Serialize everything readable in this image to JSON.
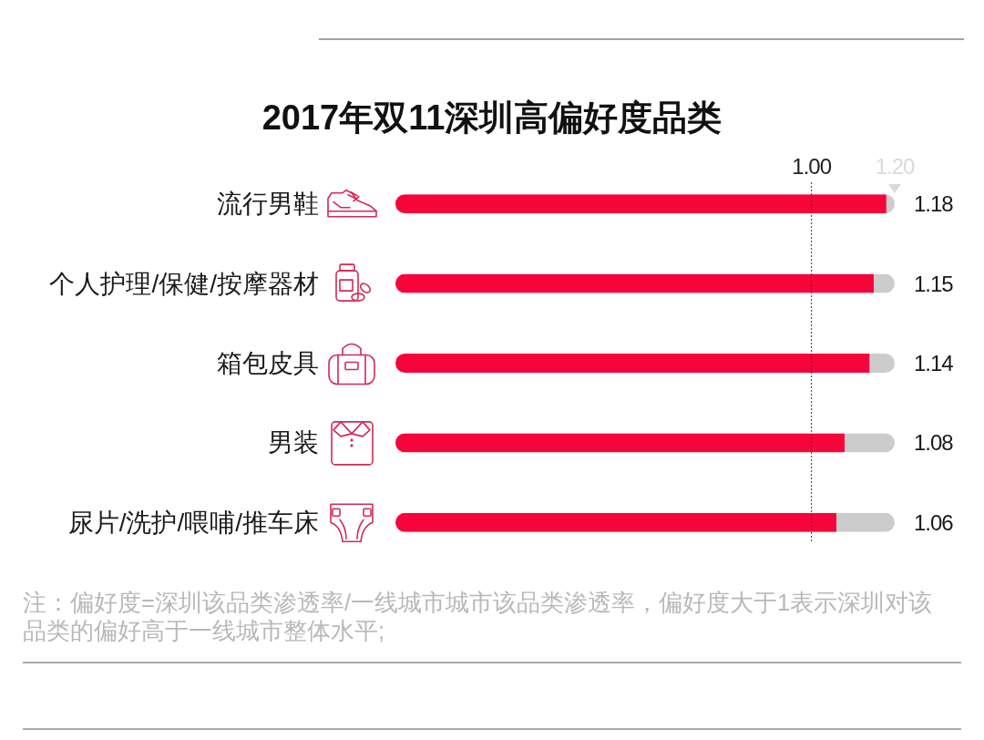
{
  "chart_data": {
    "type": "bar",
    "orientation": "horizontal",
    "stacked": true,
    "title": "2017年双11深圳高偏好度品类",
    "categories": [
      "流行男鞋",
      "个人护理/保健/按摩器材",
      "箱包皮具",
      "男装",
      "尿片/洗护/喂哺/推车床"
    ],
    "series": [
      {
        "color": "#f5053a",
        "values": [
          1.18,
          1.15,
          1.14,
          1.08,
          1.06
        ],
        "value_labels": [
          "1.18",
          "1.15",
          "1.14",
          "1.08",
          "1.06"
        ]
      },
      {
        "color": "#cccccc",
        "values": [
          0.02,
          0.05,
          0.06,
          0.12,
          0.14
        ]
      }
    ],
    "xlim": [
      0,
      1.2
    ],
    "xticks": [
      {
        "value": 1,
        "label": "1.00"
      },
      {
        "value": 1.2,
        "label": "1.20"
      }
    ],
    "ref_lines": [
      {
        "axis": "x",
        "value": 1,
        "color": "#333333",
        "line_style": "dotted"
      }
    ],
    "annotations": [
      "注：偏好度=深圳该品类渗透率/一线城市城市该品类渗透率，偏好度大于1表示深圳对该品类的偏好高于一线城市整体水平;"
    ]
  }
}
